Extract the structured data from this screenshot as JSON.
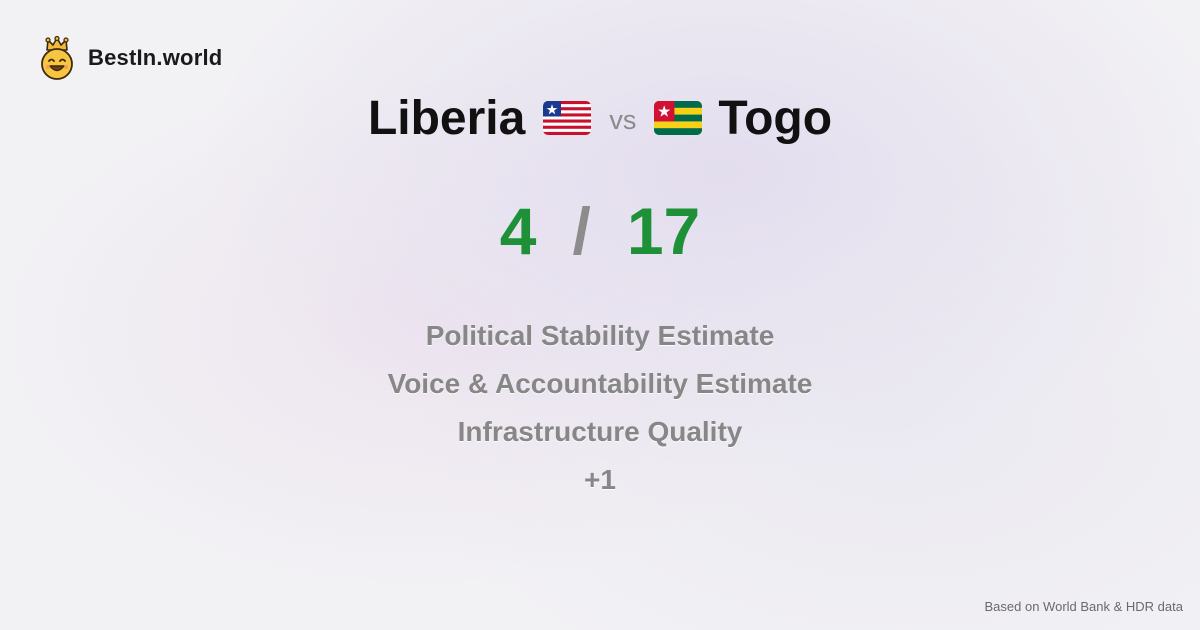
{
  "brand": {
    "name": "BestIn.world",
    "logo_icon": "crowned-smiley-icon"
  },
  "comparison": {
    "left_country": "Liberia",
    "left_flag": "liberia-flag-icon",
    "vs_label": "vs",
    "right_country": "Togo",
    "right_flag": "togo-flag-icon"
  },
  "score": {
    "left": "4",
    "separator": "/",
    "right": "17"
  },
  "metrics": [
    "Political Stability Estimate",
    "Voice & Accountability Estimate",
    "Infrastructure Quality",
    "+1"
  ],
  "footer": {
    "source": "Based on World Bank & HDR data"
  },
  "colors": {
    "score_green": "#1e9138",
    "muted_gray": "#878787",
    "logo_yellow": "#f6c23a"
  }
}
